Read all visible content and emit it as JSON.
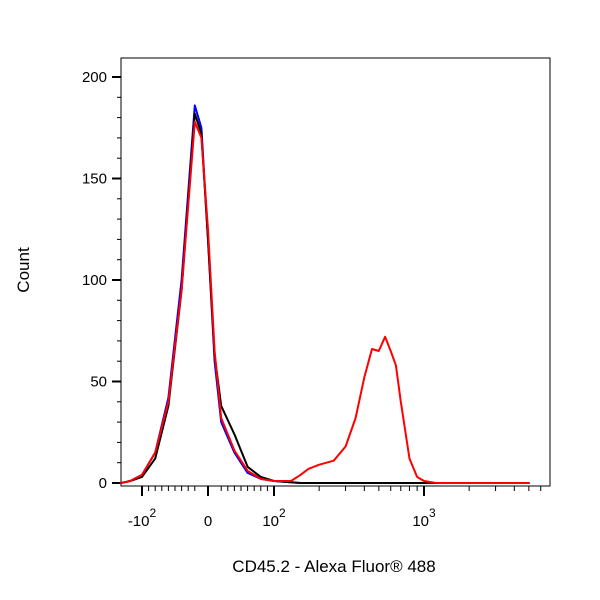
{
  "chart_data": {
    "type": "line",
    "xlabel": "CD45.2 - Alexa Fluor® 488",
    "ylabel": "Count",
    "ylim": [
      0,
      210
    ],
    "xscale": "biexponential",
    "grid": false,
    "legend": "none",
    "y_ticks": [
      {
        "value": 0,
        "label": "0"
      },
      {
        "value": 50,
        "label": "50"
      },
      {
        "value": 100,
        "label": "100"
      },
      {
        "value": 150,
        "label": "150"
      },
      {
        "value": 200,
        "label": "200"
      }
    ],
    "x_ticks": [
      {
        "value": -100,
        "base": "-10",
        "exp": "2"
      },
      {
        "value": 0,
        "base": "0",
        "exp": ""
      },
      {
        "value": 100,
        "base": "10",
        "exp": "2"
      },
      {
        "value": 1000,
        "base": "10",
        "exp": "3"
      }
    ],
    "series": [
      {
        "color": "#0000ff",
        "x": [
          -160,
          -120,
          -100,
          -80,
          -60,
          -40,
          -20,
          -10,
          0,
          10,
          20,
          40,
          60,
          80,
          100,
          150,
          300,
          1000,
          5000
        ],
        "y": [
          0,
          1,
          4,
          15,
          42,
          100,
          186,
          175,
          120,
          60,
          30,
          15,
          5,
          2,
          1,
          0,
          0,
          0,
          0
        ]
      },
      {
        "color": "#000000",
        "x": [
          -160,
          -120,
          -100,
          -80,
          -60,
          -40,
          -20,
          -10,
          0,
          10,
          20,
          40,
          60,
          80,
          100,
          150,
          300,
          1000,
          5000
        ],
        "y": [
          0,
          1,
          3,
          12,
          38,
          95,
          182,
          172,
          120,
          63,
          38,
          24,
          8,
          3,
          1,
          0,
          0,
          0,
          0
        ]
      },
      {
        "color": "#ff0000",
        "x": [
          -160,
          -120,
          -100,
          -80,
          -60,
          -40,
          -20,
          -10,
          0,
          10,
          20,
          40,
          60,
          80,
          100,
          130,
          150,
          170,
          200,
          250,
          300,
          350,
          400,
          450,
          500,
          550,
          600,
          650,
          700,
          800,
          900,
          1000,
          1200,
          1500,
          2000,
          5000
        ],
        "y": [
          0,
          1,
          4,
          15,
          40,
          95,
          178,
          170,
          125,
          65,
          32,
          16,
          6,
          2,
          1,
          1,
          4,
          7,
          9,
          11,
          18,
          32,
          52,
          66,
          65,
          72,
          65,
          58,
          40,
          12,
          3,
          1,
          0,
          0,
          0,
          0
        ]
      }
    ]
  }
}
